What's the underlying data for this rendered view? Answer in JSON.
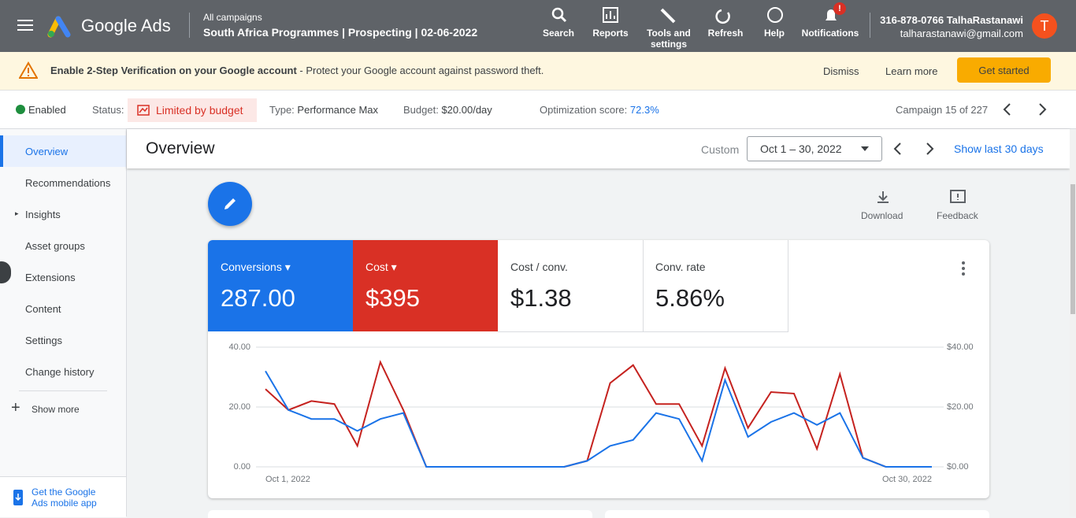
{
  "top_bar": {
    "product": "Google Ads",
    "breadcrumb": "All campaigns",
    "campaign": "South Africa Programmes | Prospecting | 02-06-2022",
    "nav": [
      "Search",
      "Reports",
      "Tools and settings",
      "Refresh",
      "Help",
      "Notifications"
    ],
    "badge": "!",
    "phone_user": "316-878-0766 TalhaRastanawi",
    "email": "talharastanawi@gmail.com",
    "avatar": "T"
  },
  "banner": {
    "bold": "Enable 2-Step Verification on your Google account",
    "text": " - Protect your Google account against password theft.",
    "actions": [
      "Dismiss",
      "Learn more",
      "Get started"
    ]
  },
  "status_bar": {
    "state": "Enabled",
    "status_label": "Status:",
    "status": "Limited by budget",
    "type_label": "Type:",
    "type": "Performance Max",
    "budget_label": "Budget:",
    "budget": "$20.00/day",
    "score_label": "Optimization score:",
    "score": "72.3%",
    "campaign_pos": "Campaign 15 of 227"
  },
  "sidebar": {
    "items": [
      "Overview",
      "Recommendations",
      "Insights",
      "Asset groups",
      "Extensions",
      "Content",
      "Settings",
      "Change history"
    ],
    "show_more": "Show more",
    "app": "Get the Google Ads mobile app"
  },
  "header": {
    "title": "Overview",
    "custom": "Custom",
    "date_range": "Oct 1 – 30, 2022",
    "show_last": "Show last 30 days"
  },
  "tools": [
    "Download",
    "Feedback"
  ],
  "scorecards": {
    "conversions": "287.00",
    "cost": "$395",
    "cost_conv_label": "Cost / conv.",
    "cost_conv": "$1.38",
    "conv_rate_label": "Conv. rate",
    "conv_rate": "5.86%"
  },
  "chart_data": {
    "type": "line",
    "categories": [
      "Oct 1, 2022",
      null,
      null,
      null,
      null,
      null,
      null,
      null,
      null,
      null,
      null,
      null,
      null,
      null,
      null,
      null,
      null,
      null,
      null,
      null,
      null,
      null,
      null,
      null,
      null,
      null,
      null,
      null,
      null,
      "Oct 30, 2022"
    ],
    "series": [
      {
        "name": "Conversions",
        "color": "#1a73e8",
        "values": [
          32,
          19,
          16,
          16,
          12,
          16,
          18,
          0,
          0,
          0,
          0,
          0,
          0,
          0,
          2,
          7,
          9,
          18,
          16,
          2,
          29,
          10,
          15,
          18,
          14,
          18,
          3,
          0,
          0,
          0
        ]
      },
      {
        "name": "Cost",
        "color": "#c5221f",
        "axis": "y2",
        "values": [
          26,
          19,
          22,
          21,
          7,
          35,
          19,
          0,
          0,
          0,
          0,
          0,
          0,
          0,
          2,
          28,
          34,
          21,
          21,
          7,
          33,
          13,
          25,
          24.5,
          6,
          31,
          3,
          0,
          0,
          0
        ]
      }
    ],
    "ylim": [
      0,
      40
    ],
    "yticks": [
      {
        "value": 0,
        "label": "0.00"
      },
      {
        "value": 20,
        "label": "20.00"
      },
      {
        "value": 40,
        "label": "40.00"
      }
    ],
    "y2lim": [
      0,
      40
    ],
    "y2ticks": [
      {
        "value": 0,
        "label": "$0.00"
      },
      {
        "value": 20,
        "label": "$20.00"
      },
      {
        "value": 40,
        "label": "$40.00"
      }
    ],
    "grid": true
  }
}
